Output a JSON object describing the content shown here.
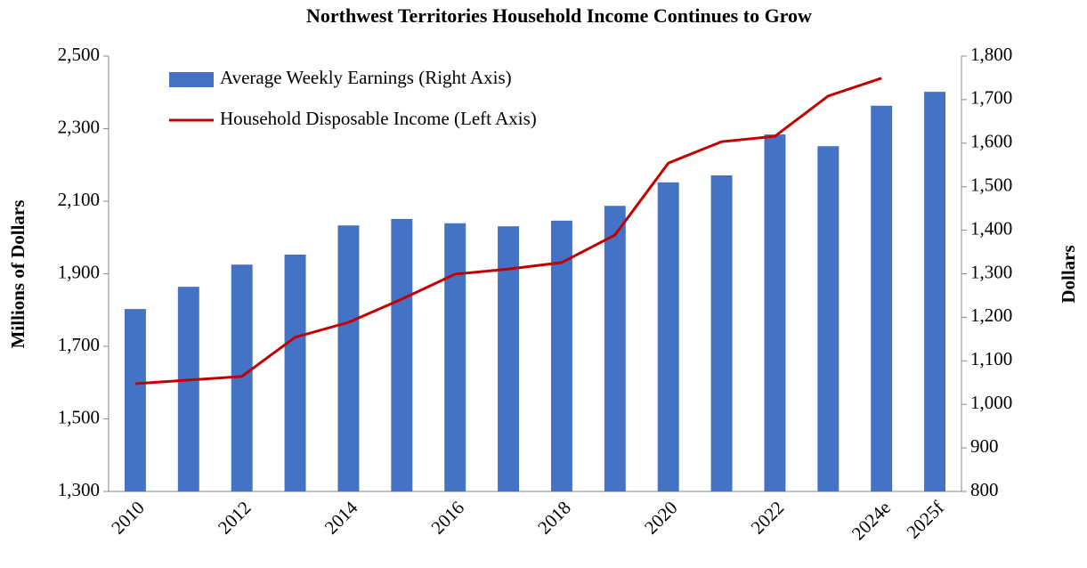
{
  "chart_data": {
    "type": "bar_line",
    "title": "Northwest Territories Household Income Continues to Grow",
    "ylabel": "Millions of Dollars",
    "y2label": "Dollars",
    "categories": [
      "2010",
      null,
      "2012",
      null,
      "2014",
      null,
      "2016",
      null,
      "2018",
      null,
      "2020",
      null,
      "2022",
      null,
      "2024e",
      "2025f"
    ],
    "series": [
      {
        "name": "Average Weekly Earnings (Right Axis)",
        "type": "bar",
        "axis": "y2",
        "color": "#4472c4",
        "values": [
          1219,
          1270,
          1321,
          1344,
          1411,
          1426,
          1416,
          1409,
          1422,
          1456,
          1510,
          1526,
          1620,
          1593,
          1686,
          1718
        ]
      },
      {
        "name": "Household Disposable Income (Left Axis)",
        "type": "line",
        "color": "#c00000",
        "values": [
          1597,
          1607,
          1617,
          1725,
          1766,
          1830,
          1899,
          1913,
          1931,
          2007,
          2205,
          2264,
          2279,
          2390,
          2439,
          null
        ]
      }
    ],
    "ylim": [
      1300,
      2500
    ],
    "yticks": [
      {
        "value": 1300,
        "label": "1,300"
      },
      {
        "value": 1500,
        "label": "1,500"
      },
      {
        "value": 1700,
        "label": "1,700"
      },
      {
        "value": 1900,
        "label": "1,900"
      },
      {
        "value": 2100,
        "label": "2,100"
      },
      {
        "value": 2300,
        "label": "2,300"
      },
      {
        "value": 2500,
        "label": "2,500"
      }
    ],
    "y2lim": [
      800,
      1800
    ],
    "y2ticks": [
      800,
      900,
      {
        "value": 1000,
        "label": "1,000"
      },
      {
        "value": 1100,
        "label": "1,100"
      },
      {
        "value": 1200,
        "label": "1,200"
      },
      {
        "value": 1300,
        "label": "1,300"
      },
      {
        "value": 1400,
        "label": "1,400"
      },
      {
        "value": 1500,
        "label": "1,500"
      },
      {
        "value": 1600,
        "label": "1,600"
      },
      {
        "value": 1700,
        "label": "1,700"
      },
      {
        "value": 1800,
        "label": "1,800"
      }
    ],
    "legend": "upper left"
  }
}
